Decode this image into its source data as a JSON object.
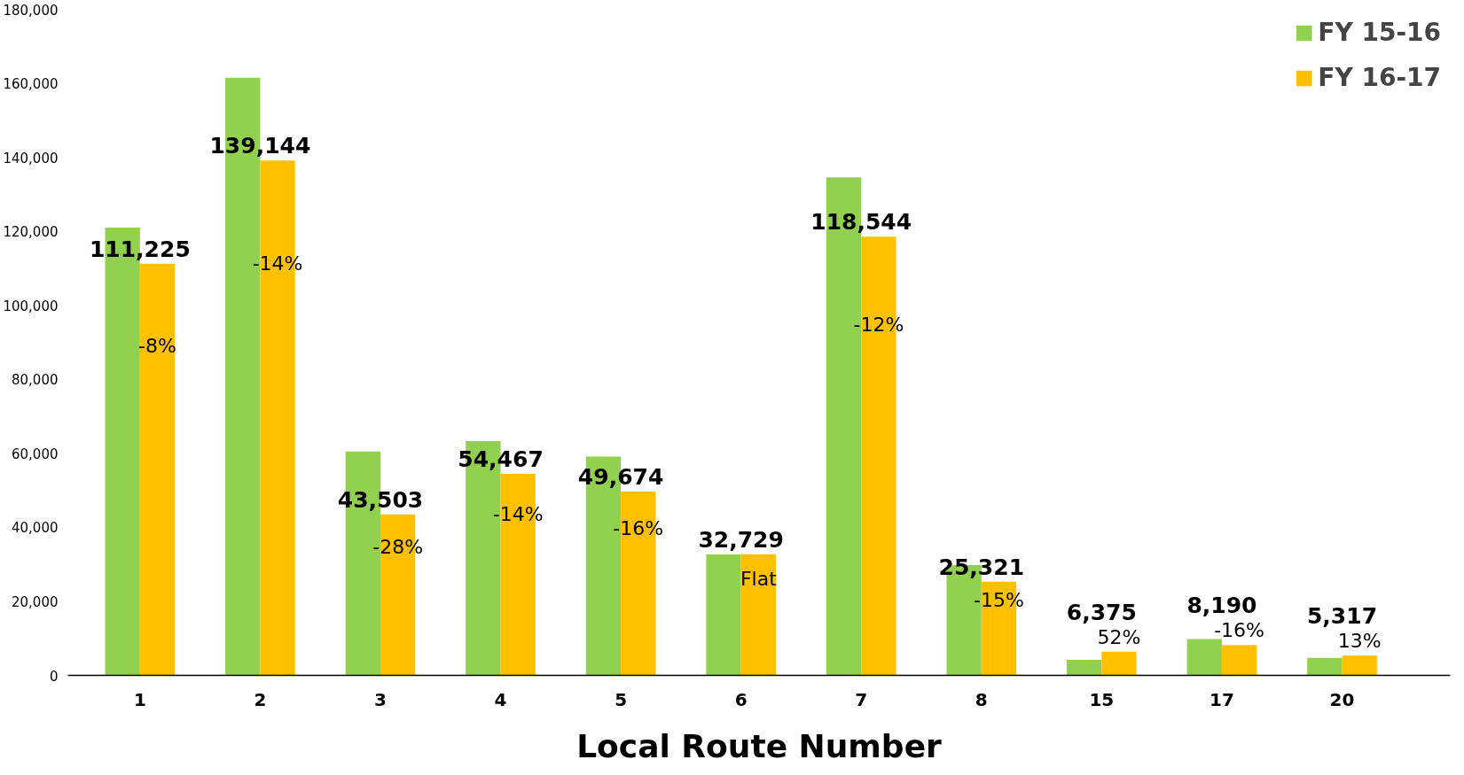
{
  "chart_data": {
    "type": "bar",
    "xlabel": "Local Route Number",
    "categories": [
      "1",
      "2",
      "3",
      "4",
      "5",
      "6",
      "7",
      "8",
      "15",
      "17",
      "20"
    ],
    "series": [
      {
        "name": "FY 15-16",
        "color": "#92d050",
        "values": [
          121000,
          161500,
          60500,
          63300,
          59100,
          32700,
          134600,
          29800,
          4200,
          9800,
          4700
        ]
      },
      {
        "name": "FY 16-17",
        "color": "#ffc000",
        "values": [
          111225,
          139144,
          43503,
          54467,
          49674,
          32729,
          118544,
          25321,
          6375,
          8190,
          5317
        ],
        "value_labels": [
          "111,225",
          "139,144",
          "43,503",
          "54,467",
          "49,674",
          "32,729",
          "118,544",
          "25,321",
          "6,375",
          "8,190",
          "5,317"
        ]
      }
    ],
    "annotations": [
      "-8%",
      "-14%",
      "-28%",
      "-14%",
      "-16%",
      "Flat",
      "-12%",
      "-15%",
      "52%",
      "-16%",
      "13%"
    ],
    "ylim": [
      0,
      180000
    ],
    "yticks": [
      {
        "value": 0,
        "label": "0"
      },
      {
        "value": 20000,
        "label": "20,000"
      },
      {
        "value": 40000,
        "label": "40,000"
      },
      {
        "value": 60000,
        "label": "60,000"
      },
      {
        "value": 80000,
        "label": "80,000"
      },
      {
        "value": 100000,
        "label": "100,000"
      },
      {
        "value": 120000,
        "label": "120,000"
      },
      {
        "value": 140000,
        "label": "140,000"
      },
      {
        "value": 160000,
        "label": "160,000"
      },
      {
        "value": 180000,
        "label": "180,000"
      }
    ],
    "grid": false,
    "legend": "top right"
  }
}
